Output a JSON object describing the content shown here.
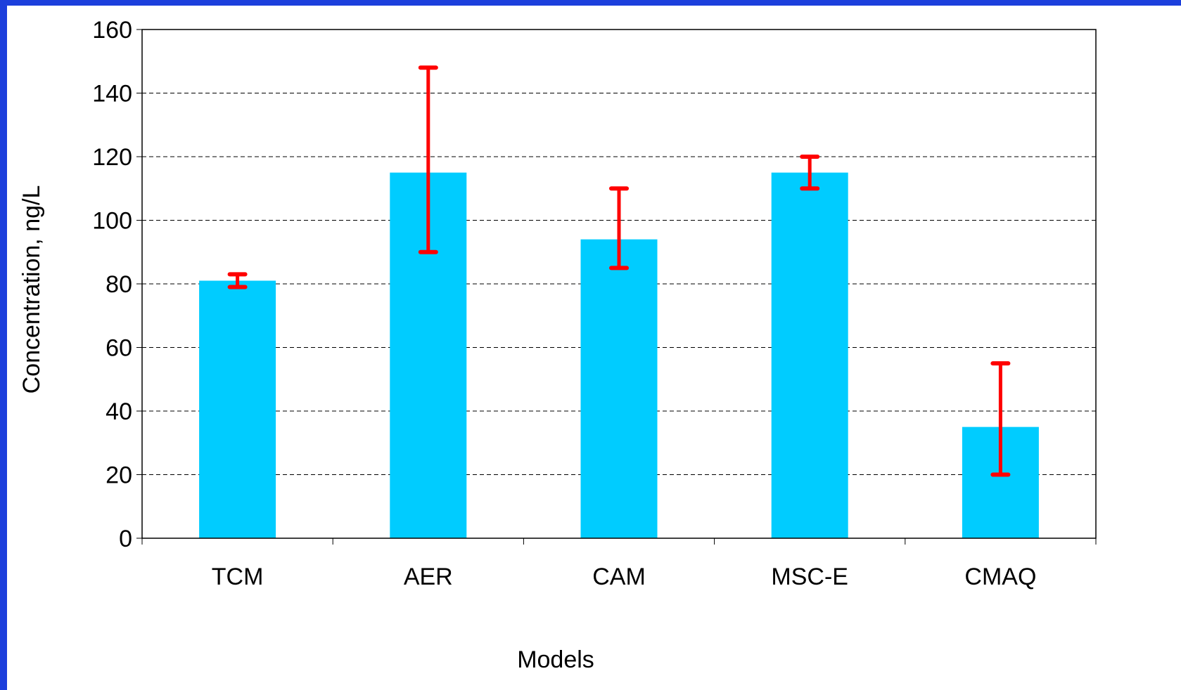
{
  "chart_data": {
    "type": "bar",
    "title": "",
    "xlabel": "Models",
    "ylabel": "Concentration, ng/L",
    "categories": [
      "TCM",
      "AER",
      "CAM",
      "MSC-E",
      "CMAQ"
    ],
    "values": [
      81,
      115,
      94,
      115,
      35
    ],
    "error_bars": [
      {
        "low": 79,
        "high": 83
      },
      {
        "low": 90,
        "high": 148
      },
      {
        "low": 85,
        "high": 110
      },
      {
        "low": 110,
        "high": 120
      },
      {
        "low": 20,
        "high": 55
      }
    ],
    "ylim": [
      0,
      160
    ],
    "yticks": [
      0,
      20,
      40,
      60,
      80,
      100,
      120,
      140,
      160
    ],
    "grid": true,
    "legend": "none",
    "colors": {
      "bar": "#00ccff",
      "error": "#ff0000",
      "frame": "#1c3fdc"
    }
  }
}
